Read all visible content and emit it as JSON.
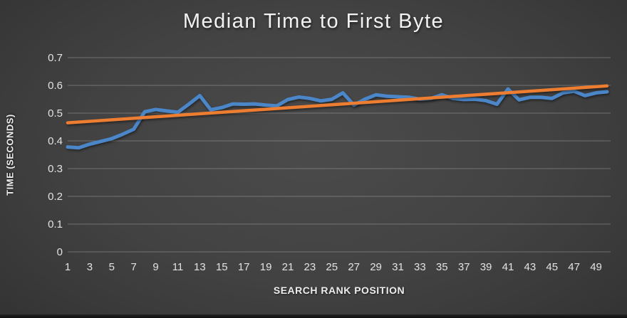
{
  "title": "Median Time to First Byte",
  "colors": {
    "background_center": "#4b4b4b",
    "background_edge": "#2b2b2b",
    "text": "#f2f2f2",
    "gridline": "rgba(255,255,255,0.26)",
    "series_blue": "#4a86c8",
    "trend_orange": "#ed7d31"
  },
  "chart_data": {
    "type": "line",
    "title": "Median Time to First Byte",
    "xlabel": "SEARCH RANK POSITION",
    "ylabel": "TIME (SECONDS)",
    "xlim": [
      1,
      50
    ],
    "ylim": [
      0,
      0.7
    ],
    "grid": true,
    "legend": "none",
    "xtick_labels": [
      "1",
      "3",
      "5",
      "7",
      "9",
      "11",
      "13",
      "15",
      "17",
      "19",
      "21",
      "23",
      "25",
      "27",
      "29",
      "31",
      "33",
      "35",
      "37",
      "39",
      "41",
      "43",
      "45",
      "47",
      "49"
    ],
    "xtick_values": [
      1,
      3,
      5,
      7,
      9,
      11,
      13,
      15,
      17,
      19,
      21,
      23,
      25,
      27,
      29,
      31,
      33,
      35,
      37,
      39,
      41,
      43,
      45,
      47,
      49
    ],
    "ytick_labels": [
      "0",
      "0.1",
      "0.2",
      "0.3",
      "0.4",
      "0.5",
      "0.6",
      "0.7"
    ],
    "ytick_values": [
      0,
      0.1,
      0.2,
      0.3,
      0.4,
      0.5,
      0.6,
      0.7
    ],
    "x": [
      1,
      2,
      3,
      4,
      5,
      6,
      7,
      8,
      9,
      10,
      11,
      12,
      13,
      14,
      15,
      16,
      17,
      18,
      19,
      20,
      21,
      22,
      23,
      24,
      25,
      26,
      27,
      28,
      29,
      30,
      31,
      32,
      33,
      34,
      35,
      36,
      37,
      38,
      39,
      40,
      41,
      42,
      43,
      44,
      45,
      46,
      47,
      48,
      49,
      50
    ],
    "series": [
      {
        "name": "median-time-to-first-byte",
        "color": "#4a86c8",
        "values": [
          0.378,
          0.375,
          0.388,
          0.398,
          0.408,
          0.424,
          0.442,
          0.505,
          0.513,
          0.508,
          0.503,
          0.532,
          0.563,
          0.512,
          0.52,
          0.533,
          0.532,
          0.533,
          0.529,
          0.526,
          0.549,
          0.558,
          0.553,
          0.544,
          0.55,
          0.573,
          0.529,
          0.55,
          0.566,
          0.561,
          0.559,
          0.557,
          0.55,
          0.553,
          0.566,
          0.553,
          0.549,
          0.55,
          0.545,
          0.532,
          0.587,
          0.548,
          0.557,
          0.557,
          0.553,
          0.573,
          0.579,
          0.563,
          0.573,
          0.577
        ]
      },
      {
        "name": "linear-trendline",
        "color": "#ed7d31",
        "x": [
          1,
          50
        ],
        "values": [
          0.465,
          0.598
        ]
      }
    ]
  }
}
